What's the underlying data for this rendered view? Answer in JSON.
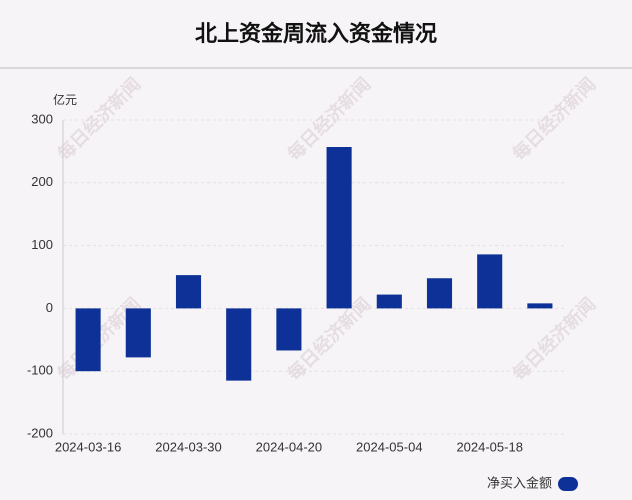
{
  "chart_data": {
    "type": "bar",
    "title": "北上资金周流入资金情况",
    "y_label": "亿元",
    "categories": [
      "2024-03-16",
      null,
      "2024-03-30",
      null,
      "2024-04-20",
      null,
      "2024-05-04",
      null,
      "2024-05-18",
      null
    ],
    "series": [
      {
        "name": "净买入金额",
        "color": "#0d3196",
        "values": [
          -100,
          -78,
          53,
          -115,
          -67,
          257,
          22,
          48,
          86,
          8
        ]
      }
    ],
    "ylim": [
      -200,
      300
    ],
    "yticks": [
      -200,
      -100,
      0,
      100,
      200,
      300
    ],
    "grid": true,
    "legend": "bottom-right",
    "watermark": "每日经济新闻"
  }
}
